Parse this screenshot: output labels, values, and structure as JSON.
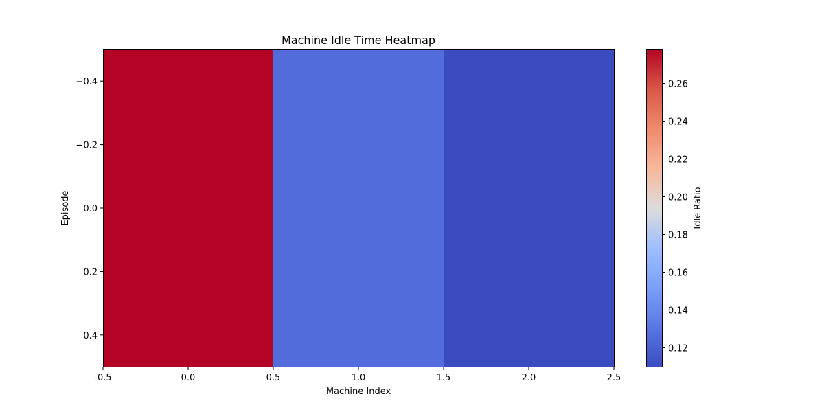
{
  "chart_data": {
    "type": "heatmap",
    "title": "Machine Idle Time Heatmap",
    "xlabel": "Machine Index",
    "ylabel": "Episode",
    "colorbar_label": "Idle Ratio",
    "colormap": "coolwarm",
    "x_categories": [
      0,
      1,
      2
    ],
    "y_categories": [
      0
    ],
    "values": [
      [
        0.278,
        0.126,
        0.11
      ]
    ],
    "xlim": [
      -0.5,
      2.5
    ],
    "ylim": [
      0.5,
      -0.5
    ],
    "x_ticks": [
      "-0.5",
      "0.0",
      "0.5",
      "1.0",
      "1.5",
      "2.0",
      "2.5"
    ],
    "y_ticks": [
      "−0.4",
      "−0.2",
      "0.0",
      "0.2",
      "0.4"
    ],
    "y_tick_values": [
      -0.4,
      -0.2,
      0.0,
      0.2,
      0.4
    ],
    "colorbar_range": [
      0.11,
      0.278
    ],
    "colorbar_ticks": [
      "0.12",
      "0.14",
      "0.16",
      "0.18",
      "0.20",
      "0.22",
      "0.24",
      "0.26"
    ],
    "colorbar_tick_values": [
      0.12,
      0.14,
      0.16,
      0.18,
      0.2,
      0.22,
      0.24,
      0.26
    ],
    "grid": false
  }
}
